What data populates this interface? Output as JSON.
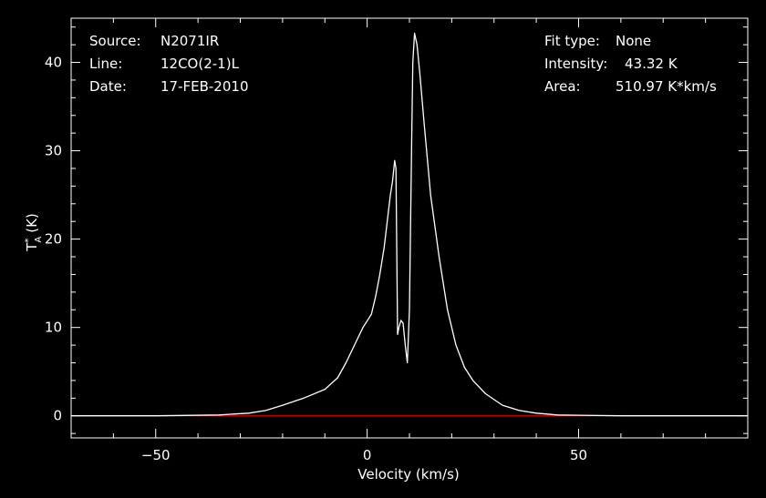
{
  "info": {
    "source_label": "Source:",
    "source_value": "N2071IR",
    "line_label": "Line:",
    "line_value": "12CO(2-1)L",
    "date_label": "Date:",
    "date_value": "17-FEB-2010",
    "fit_label": "Fit type:",
    "fit_value": "None",
    "intensity_label": "Intensity:",
    "intensity_value": "43.32 K",
    "area_label": "Area:",
    "area_value": "510.97 K*km/s"
  },
  "chart_data": {
    "type": "line",
    "xlabel": "Velocity (km/s)",
    "ylabel_main": "T",
    "ylabel_sup": "*",
    "ylabel_sub": "A",
    "ylabel_unit": "(K)",
    "xlim": [
      -70,
      90
    ],
    "ylim": [
      -2.5,
      45
    ],
    "xticks": [
      -50,
      0,
      50
    ],
    "yticks": [
      0,
      10,
      20,
      30,
      40
    ],
    "grid": false,
    "colors": {
      "background": "#000000",
      "axes": "#ffffff",
      "spectrum": "#ffffff",
      "baseline": "#ff0000"
    },
    "baseline": 0,
    "series": [
      {
        "x": [
          -70,
          -50,
          -35,
          -28,
          -24,
          -20,
          -15,
          -10,
          -7,
          -5,
          -3,
          -1,
          1,
          2,
          3,
          4,
          4.5,
          5,
          5.5,
          6,
          6.5,
          6.8,
          7.2,
          7.5,
          8,
          8.5,
          9,
          9.5,
          10,
          10.5,
          10.8,
          11.2,
          11.8,
          12.5,
          13.5,
          15,
          17,
          19,
          21,
          23,
          25,
          28,
          32,
          36,
          40,
          45,
          60,
          90
        ],
        "y": [
          0,
          0,
          0.1,
          0.3,
          0.6,
          1.2,
          2.0,
          3.0,
          4.3,
          6.0,
          8.0,
          10.0,
          11.5,
          13.5,
          16.0,
          19.0,
          21.0,
          23.0,
          25.0,
          26.5,
          28.9,
          28.0,
          9.2,
          10.0,
          10.8,
          10.5,
          8.0,
          6.0,
          12.0,
          30.0,
          40.0,
          43.3,
          42.0,
          38.5,
          33.0,
          25.0,
          18.0,
          12.0,
          8.0,
          5.5,
          4.0,
          2.5,
          1.2,
          0.6,
          0.3,
          0.1,
          0,
          0
        ]
      }
    ]
  }
}
